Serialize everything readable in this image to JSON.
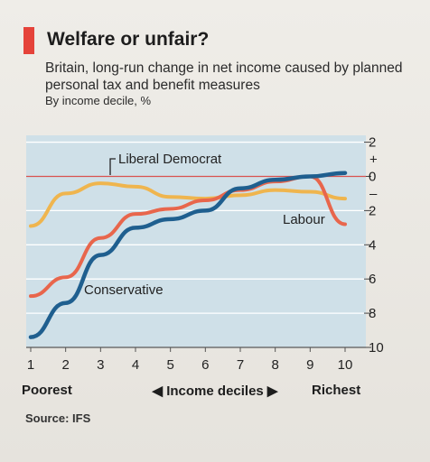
{
  "header": {
    "title": "Welfare or unfair?",
    "subtitle": "Britain, long-run change in net income caused by planned personal tax and benefit measures",
    "unit": "By income decile, %"
  },
  "footer": {
    "x_left_label": "Poorest",
    "x_title": "◀ Income deciles ▶",
    "x_right_label": "Richest",
    "source": "Source: IFS"
  },
  "colors": {
    "background": "#cfe0e8",
    "conservative": "#1f5f8f",
    "labour": "#e8664c",
    "liberal_democrat": "#efb54e",
    "zero_line": "#d9534f",
    "accent": "#e5433a"
  },
  "chart_data": {
    "type": "line",
    "x": [
      1,
      2,
      3,
      4,
      5,
      6,
      7,
      8,
      9,
      10
    ],
    "x_tick_labels": [
      "1",
      "2",
      "3",
      "4",
      "5",
      "6",
      "7",
      "8",
      "9",
      "10"
    ],
    "y_tick_values": [
      2,
      0,
      -2,
      -4,
      -6,
      -8,
      -10
    ],
    "y_tick_labels": [
      "2",
      "0",
      "2",
      "4",
      "6",
      "8",
      "10"
    ],
    "y_sign_labels": [
      "+",
      "–"
    ],
    "ylim": [
      -10,
      2.4
    ],
    "xlim": [
      1,
      10.3
    ],
    "grid": true,
    "series": [
      {
        "name": "Conservative",
        "color": "#1f5f8f",
        "values": [
          -9.4,
          -7.4,
          -4.6,
          -3.0,
          -2.5,
          -2.0,
          -0.7,
          -0.2,
          0.0,
          0.2
        ]
      },
      {
        "name": "Labour",
        "color": "#e8664c",
        "values": [
          -7.0,
          -5.9,
          -3.6,
          -2.2,
          -1.9,
          -1.4,
          -0.8,
          -0.3,
          0.0,
          -2.8
        ]
      },
      {
        "name": "Liberal Democrat",
        "color": "#efb54e",
        "values": [
          -2.9,
          -1.0,
          -0.4,
          -0.6,
          -1.2,
          -1.3,
          -1.1,
          -0.8,
          -0.9,
          -1.3
        ]
      }
    ]
  }
}
